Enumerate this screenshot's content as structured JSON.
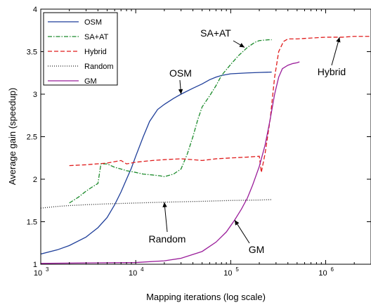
{
  "chart_data": {
    "type": "line",
    "xlabel": "Mapping iterations (log scale)",
    "ylabel": "Average gain (speedup)",
    "xscale": "log",
    "xlim": [
      1000,
      3000000
    ],
    "ylim": [
      1,
      4
    ],
    "grid": false,
    "legend_position": "top-left",
    "x_ticks": [
      {
        "value": 1000,
        "base": "10",
        "exp": "3"
      },
      {
        "value": 10000,
        "base": "10",
        "exp": "4"
      },
      {
        "value": 100000,
        "base": "10",
        "exp": "5"
      },
      {
        "value": 1000000,
        "base": "10",
        "exp": "6"
      }
    ],
    "y_ticks": [
      "1",
      "1.5",
      "2",
      "2.5",
      "3",
      "3.5",
      "4"
    ],
    "legend": [
      {
        "name": "OSM"
      },
      {
        "name": "SA+AT"
      },
      {
        "name": "Hybrid"
      },
      {
        "name": "Random"
      },
      {
        "name": "GM"
      }
    ],
    "series": [
      {
        "name": "OSM",
        "color": "#1f3f9a",
        "dash": "solid",
        "points": [
          [
            1000,
            1.12
          ],
          [
            1500,
            1.17
          ],
          [
            2000,
            1.22
          ],
          [
            3000,
            1.32
          ],
          [
            4000,
            1.43
          ],
          [
            5000,
            1.55
          ],
          [
            6000,
            1.7
          ],
          [
            7000,
            1.85
          ],
          [
            8000,
            2.0
          ],
          [
            9000,
            2.13
          ],
          [
            10000,
            2.27
          ],
          [
            12000,
            2.5
          ],
          [
            14000,
            2.68
          ],
          [
            17000,
            2.82
          ],
          [
            20000,
            2.88
          ],
          [
            25000,
            2.95
          ],
          [
            30000,
            3.0
          ],
          [
            40000,
            3.07
          ],
          [
            50000,
            3.12
          ],
          [
            60000,
            3.17
          ],
          [
            70000,
            3.2
          ],
          [
            80000,
            3.22
          ],
          [
            100000,
            3.24
          ],
          [
            150000,
            3.25
          ],
          [
            200000,
            3.255
          ],
          [
            270000,
            3.26
          ]
        ]
      },
      {
        "name": "SA+AT",
        "color": "#1a8a2a",
        "dash": "dashdot",
        "points": [
          [
            2000,
            1.72
          ],
          [
            2500,
            1.79
          ],
          [
            3000,
            1.86
          ],
          [
            3500,
            1.91
          ],
          [
            4000,
            1.95
          ],
          [
            4300,
            2.18
          ],
          [
            5000,
            2.18
          ],
          [
            6000,
            2.14
          ],
          [
            7000,
            2.12
          ],
          [
            8000,
            2.1
          ],
          [
            10000,
            2.08
          ],
          [
            12000,
            2.06
          ],
          [
            15000,
            2.05
          ],
          [
            18000,
            2.04
          ],
          [
            20000,
            2.03
          ],
          [
            25000,
            2.06
          ],
          [
            30000,
            2.12
          ],
          [
            35000,
            2.3
          ],
          [
            40000,
            2.5
          ],
          [
            45000,
            2.7
          ],
          [
            50000,
            2.85
          ],
          [
            60000,
            2.98
          ],
          [
            70000,
            3.1
          ],
          [
            80000,
            3.22
          ],
          [
            100000,
            3.35
          ],
          [
            120000,
            3.45
          ],
          [
            150000,
            3.55
          ],
          [
            180000,
            3.61
          ],
          [
            200000,
            3.63
          ],
          [
            250000,
            3.64
          ],
          [
            270000,
            3.64
          ]
        ]
      },
      {
        "name": "Hybrid",
        "color": "#e01c1c",
        "dash": "dash",
        "points": [
          [
            2000,
            2.16
          ],
          [
            3000,
            2.17
          ],
          [
            5000,
            2.19
          ],
          [
            7000,
            2.22
          ],
          [
            8000,
            2.18
          ],
          [
            10000,
            2.2
          ],
          [
            15000,
            2.22
          ],
          [
            20000,
            2.23
          ],
          [
            30000,
            2.24
          ],
          [
            40000,
            2.23
          ],
          [
            50000,
            2.22
          ],
          [
            70000,
            2.24
          ],
          [
            100000,
            2.25
          ],
          [
            150000,
            2.26
          ],
          [
            200000,
            2.27
          ],
          [
            210000,
            2.08
          ],
          [
            230000,
            2.3
          ],
          [
            260000,
            2.7
          ],
          [
            290000,
            3.2
          ],
          [
            320000,
            3.5
          ],
          [
            360000,
            3.62
          ],
          [
            400000,
            3.65
          ],
          [
            500000,
            3.65
          ],
          [
            700000,
            3.66
          ],
          [
            1000000,
            3.67
          ],
          [
            1500000,
            3.67
          ],
          [
            2000000,
            3.68
          ],
          [
            3000000,
            3.68
          ]
        ]
      },
      {
        "name": "Random",
        "color": "#222222",
        "dash": "dot",
        "points": [
          [
            1000,
            1.66
          ],
          [
            1500,
            1.68
          ],
          [
            2000,
            1.69
          ],
          [
            3000,
            1.7
          ],
          [
            5000,
            1.71
          ],
          [
            10000,
            1.72
          ],
          [
            20000,
            1.73
          ],
          [
            50000,
            1.74
          ],
          [
            100000,
            1.75
          ],
          [
            200000,
            1.755
          ],
          [
            270000,
            1.76
          ]
        ]
      },
      {
        "name": "GM",
        "color": "#9a1d9a",
        "dash": "solid",
        "points": [
          [
            1000,
            1.01
          ],
          [
            3000,
            1.015
          ],
          [
            10000,
            1.02
          ],
          [
            20000,
            1.04
          ],
          [
            30000,
            1.07
          ],
          [
            50000,
            1.15
          ],
          [
            70000,
            1.26
          ],
          [
            90000,
            1.38
          ],
          [
            110000,
            1.52
          ],
          [
            130000,
            1.65
          ],
          [
            150000,
            1.78
          ],
          [
            170000,
            1.93
          ],
          [
            200000,
            2.15
          ],
          [
            230000,
            2.4
          ],
          [
            260000,
            2.7
          ],
          [
            290000,
            3.0
          ],
          [
            320000,
            3.2
          ],
          [
            350000,
            3.3
          ],
          [
            400000,
            3.34
          ],
          [
            450000,
            3.36
          ],
          [
            500000,
            3.37
          ],
          [
            530000,
            3.38
          ]
        ]
      }
    ],
    "annotations": [
      {
        "text": "SA+AT",
        "target": [
          140000,
          3.55
        ]
      },
      {
        "text": "OSM",
        "target": [
          30000,
          3.0
        ]
      },
      {
        "text": "Hybrid",
        "target": [
          1400000,
          3.67
        ]
      },
      {
        "text": "Random",
        "target": [
          20000,
          1.73
        ]
      },
      {
        "text": "GM",
        "target": [
          110000,
          1.52
        ]
      }
    ]
  }
}
